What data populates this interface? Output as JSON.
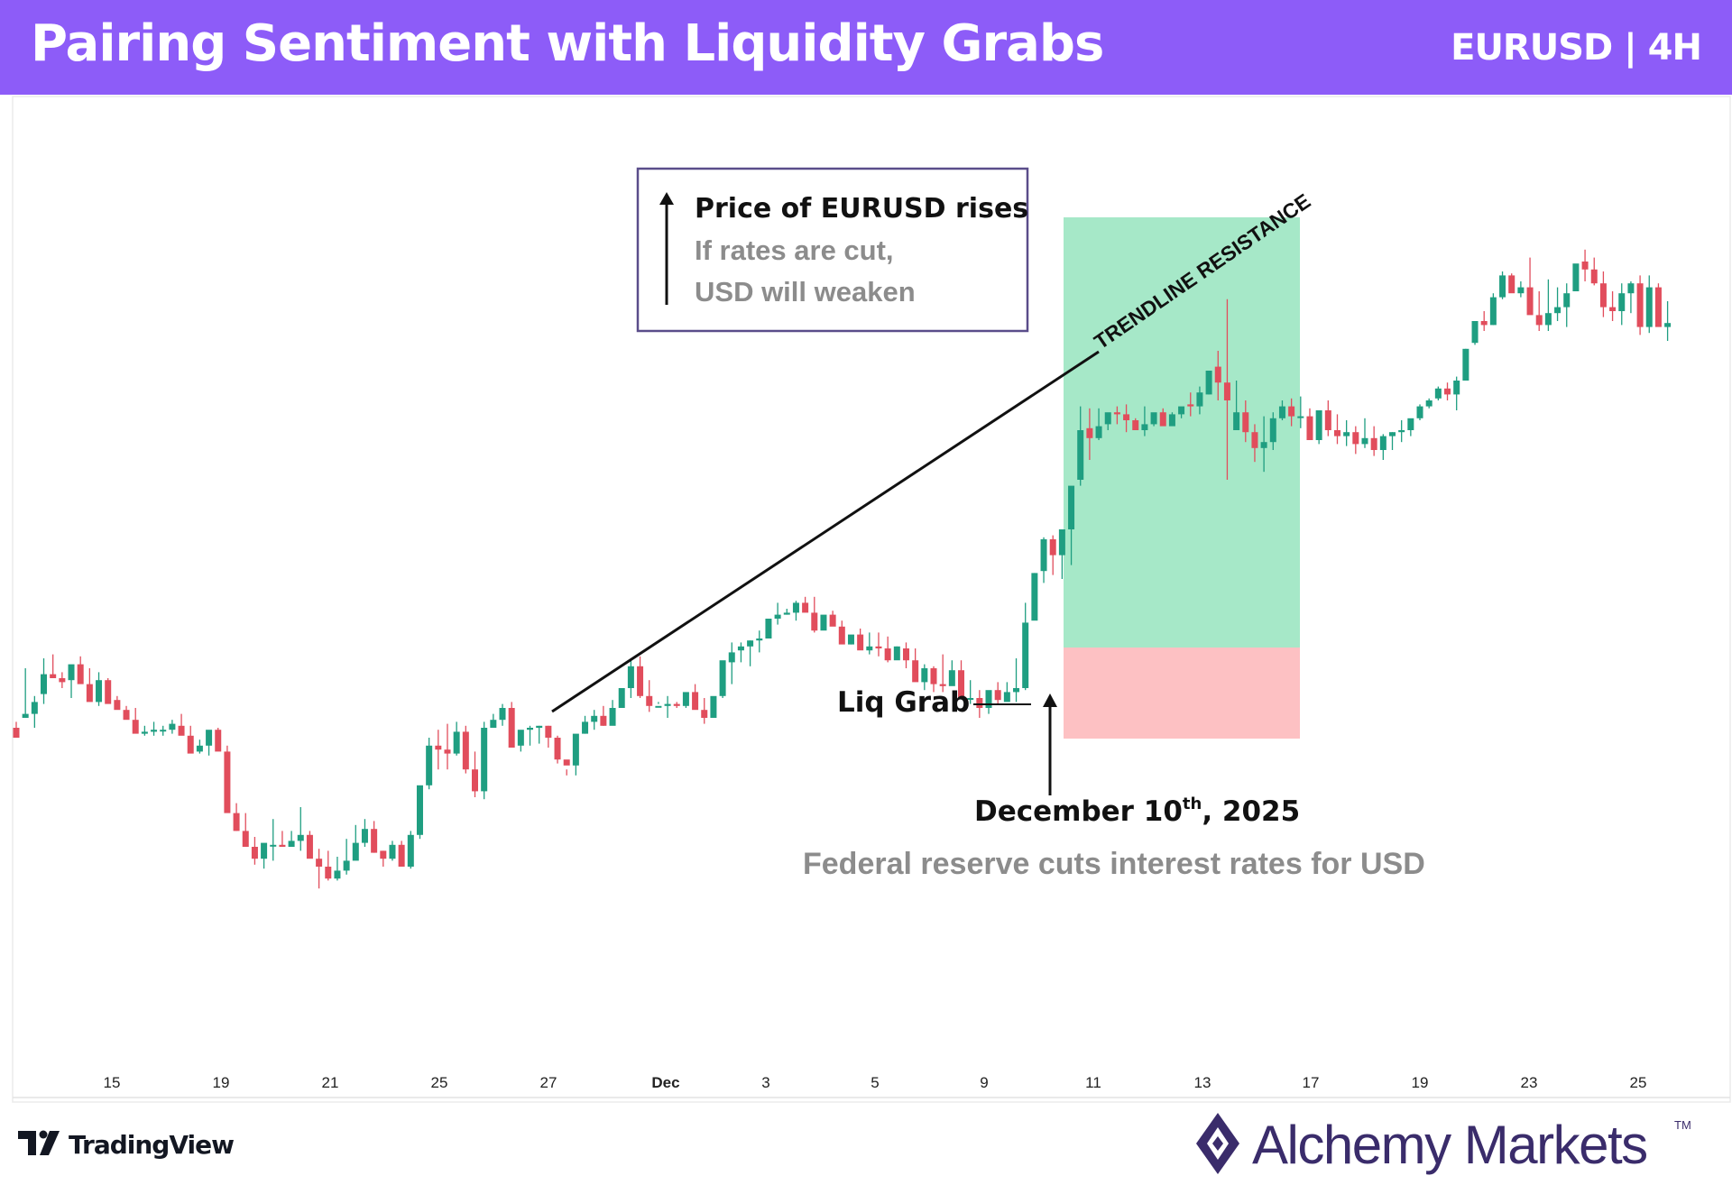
{
  "header": {
    "title": "Pairing Sentiment with Liquidity Grabs",
    "ticker": "EURUSD | 4H"
  },
  "colors": {
    "header_bg": "#8d5cf8",
    "up_candle": "#1f9e81",
    "down_candle": "#e14d5c",
    "profit_zone": "#a6e8c8",
    "loss_zone": "#fdc1c3",
    "annotation_box_border": "#5a4d8a",
    "annotation_gray": "#8c8c8c",
    "brand_mark": "#3a2c6b"
  },
  "icons": {
    "tradingview": "tradingview-logo-icon",
    "brand": "alchemy-markets-logo-icon",
    "arrows": "arrow-up-icon"
  },
  "chart_data": {
    "type": "candlestick",
    "symbol": "EURUSD",
    "timeframe": "4H",
    "x_tick_labels": [
      "15",
      "19",
      "21",
      "25",
      "27",
      "Dec",
      "3",
      "5",
      "9",
      "11",
      "13",
      "17",
      "19",
      "23",
      "25"
    ],
    "y_axis_labels_shown": false,
    "grid": false,
    "relative_price_scale": [
      0,
      100
    ],
    "candles_relative": [
      [
        28,
        25,
        23,
        20
      ],
      [
        30,
        30,
        55,
        32
      ],
      [
        25,
        32,
        41,
        38
      ],
      [
        37,
        42,
        60,
        52
      ],
      [
        50,
        52,
        62,
        50
      ],
      [
        45,
        50,
        53,
        48
      ],
      [
        40,
        49,
        52,
        57
      ],
      [
        52,
        57,
        61,
        47
      ],
      [
        45,
        47,
        55,
        38
      ],
      [
        36,
        38,
        53,
        49
      ],
      [
        48,
        49,
        50,
        37
      ],
      [
        35,
        39,
        41,
        34
      ],
      [
        30,
        34,
        36,
        29
      ],
      [
        27,
        29,
        35,
        22
      ],
      [
        21,
        22,
        26,
        23
      ],
      [
        21,
        23,
        28,
        24
      ],
      [
        21,
        24,
        26,
        24
      ],
      [
        22,
        24,
        29,
        27
      ],
      [
        22,
        26,
        32,
        21
      ],
      [
        15,
        21,
        26,
        12
      ],
      [
        12,
        13,
        19,
        16
      ],
      [
        11,
        16,
        18,
        24
      ],
      [
        19,
        24,
        25,
        13
      ],
      [
        -17,
        13,
        16,
        -18
      ],
      [
        -27,
        -18,
        -13,
        -27
      ],
      [
        -30,
        -27,
        -18,
        -35
      ],
      [
        -44,
        -35,
        -30,
        -41
      ],
      [
        -46,
        -41,
        -38,
        -33
      ],
      [
        -42,
        -34,
        -21,
        -34
      ],
      [
        -35,
        -34,
        -27,
        -35
      ],
      [
        -35,
        -35,
        -27,
        -32
      ],
      [
        -37,
        -32,
        -15,
        -29
      ],
      [
        -39,
        -29,
        -27,
        -41
      ],
      [
        -56,
        -41,
        -36,
        -45
      ],
      [
        -52,
        -45,
        -37,
        -51
      ],
      [
        -52,
        -51,
        -40,
        -47
      ],
      [
        -49,
        -47,
        -31,
        -42
      ],
      [
        -38,
        -42,
        -24,
        -33
      ],
      [
        -35,
        -33,
        -21,
        -26
      ],
      [
        -38,
        -26,
        -22,
        -38
      ],
      [
        -45,
        -37,
        -37,
        -41
      ],
      [
        -42,
        -41,
        -32,
        -34
      ],
      [
        -44,
        -34,
        -32,
        -45
      ],
      [
        -46,
        -45,
        -27,
        -29
      ],
      [
        -31,
        -29,
        -8,
        -4
      ],
      [
        -6,
        -4,
        20,
        16
      ],
      [
        4,
        16,
        24,
        14
      ],
      [
        4,
        14,
        27,
        12
      ],
      [
        11,
        12,
        28,
        23
      ],
      [
        2,
        23,
        26,
        4
      ],
      [
        -10,
        4,
        13,
        -7
      ],
      [
        -11,
        -7,
        28,
        25
      ],
      [
        25,
        25,
        32,
        29
      ],
      [
        26,
        29,
        37,
        35
      ],
      [
        21,
        35,
        38,
        15
      ],
      [
        13,
        16,
        23,
        24
      ],
      [
        16,
        24,
        26,
        25
      ],
      [
        17,
        25,
        26,
        26
      ],
      [
        15,
        26,
        26,
        20
      ],
      [
        7,
        20,
        21,
        9
      ],
      [
        1,
        9,
        4,
        6
      ],
      [
        1,
        6,
        18,
        22
      ],
      [
        22,
        22,
        31,
        28
      ],
      [
        24,
        28,
        34,
        31
      ],
      [
        26,
        31,
        36,
        26
      ],
      [
        35,
        26,
        39,
        35
      ],
      [
        40,
        35,
        45,
        45
      ],
      [
        40,
        45,
        59,
        56
      ],
      [
        40,
        56,
        61,
        41
      ],
      [
        33,
        41,
        49,
        36
      ],
      [
        37,
        36,
        38,
        36
      ],
      [
        30,
        36,
        41,
        37
      ],
      [
        35,
        37,
        38,
        36
      ],
      [
        35,
        36,
        41,
        43
      ],
      [
        36,
        43,
        47,
        34
      ],
      [
        27,
        34,
        40,
        30
      ],
      [
        30,
        30,
        38,
        41
      ],
      [
        40,
        41,
        51,
        59
      ],
      [
        47,
        58,
        68,
        63
      ],
      [
        58,
        64,
        68,
        66
      ],
      [
        56,
        66,
        69,
        69
      ],
      [
        63,
        69,
        74,
        70
      ],
      [
        70,
        70,
        76,
        80
      ],
      [
        77,
        80,
        88,
        82
      ],
      [
        82,
        82,
        85,
        83
      ],
      [
        79,
        83,
        89,
        88
      ],
      [
        85,
        88,
        91,
        83
      ],
      [
        73,
        83,
        91,
        74
      ],
      [
        78,
        74,
        78,
        82
      ],
      [
        80,
        82,
        84,
        76
      ],
      [
        70,
        76,
        79,
        67
      ],
      [
        67,
        67,
        68,
        72
      ],
      [
        69,
        72,
        75,
        64
      ],
      [
        62,
        64,
        73,
        66
      ],
      [
        61,
        66,
        73,
        65
      ],
      [
        58,
        65,
        71,
        59
      ],
      [
        60,
        59,
        66,
        66
      ],
      [
        55,
        65,
        68,
        59
      ],
      [
        53,
        59,
        65,
        48
      ],
      [
        44,
        48,
        57,
        55
      ],
      [
        43,
        55,
        56,
        47
      ],
      [
        43,
        47,
        62,
        46
      ],
      [
        47,
        46,
        59,
        54
      ],
      [
        40,
        54,
        59,
        40
      ],
      [
        37,
        40,
        49,
        40
      ],
      [
        30,
        40,
        44,
        35
      ],
      [
        32,
        35,
        42,
        44
      ],
      [
        37,
        44,
        48,
        39
      ],
      [
        39,
        38,
        48,
        43
      ],
      [
        38,
        43,
        60,
        45
      ],
      [
        44,
        45,
        88,
        78
      ],
      [
        81,
        79,
        103,
        103
      ],
      [
        98,
        104,
        121,
        120
      ],
      [
        102,
        120,
        122,
        112
      ],
      [
        100,
        112,
        124,
        125
      ],
      [
        107,
        125,
        145,
        147
      ],
      [
        147,
        150,
        187,
        175
      ],
      [
        160,
        176,
        186,
        171
      ],
      [
        170,
        171,
        186,
        177
      ],
      [
        175,
        178,
        181,
        184
      ],
      [
        178,
        184,
        187,
        183
      ],
      [
        174,
        183,
        188,
        180
      ],
      [
        175,
        180,
        181,
        175
      ],
      [
        172,
        175,
        187,
        178
      ],
      [
        177,
        178,
        182,
        184
      ],
      [
        179,
        184,
        186,
        177
      ],
      [
        178,
        177,
        184,
        183
      ],
      [
        181,
        183,
        186,
        187
      ],
      [
        182,
        188,
        194,
        187
      ],
      [
        183,
        187,
        197,
        194
      ],
      [
        193,
        193,
        200,
        205
      ],
      [
        190,
        207,
        215,
        199
      ],
      [
        150,
        199,
        241,
        190
      ],
      [
        175,
        175,
        200,
        184
      ],
      [
        169,
        184,
        190,
        174
      ],
      [
        159,
        174,
        178,
        166
      ],
      [
        154,
        166,
        182,
        169
      ],
      [
        165,
        169,
        184,
        181
      ],
      [
        180,
        181,
        190,
        187
      ],
      [
        177,
        187,
        191,
        182
      ],
      [
        176,
        182,
        192,
        182
      ],
      [
        175,
        182,
        186,
        170
      ],
      [
        168,
        170,
        181,
        185
      ],
      [
        172,
        185,
        190,
        175
      ],
      [
        168,
        175,
        183,
        172
      ],
      [
        167,
        172,
        180,
        174
      ],
      [
        163,
        174,
        177,
        168
      ],
      [
        166,
        168,
        181,
        171
      ],
      [
        162,
        171,
        177,
        165
      ],
      [
        160,
        165,
        173,
        172
      ],
      [
        165,
        172,
        174,
        174
      ],
      [
        169,
        174,
        180,
        175
      ],
      [
        172,
        175,
        179,
        181
      ],
      [
        180,
        181,
        188,
        187
      ],
      [
        186,
        187,
        191,
        190
      ],
      [
        190,
        191,
        197,
        196
      ],
      [
        190,
        196,
        199,
        193
      ],
      [
        185,
        193,
        202,
        200
      ],
      [
        200,
        200,
        216,
        216
      ],
      [
        218,
        219,
        230,
        230
      ],
      [
        225,
        230,
        235,
        228
      ],
      [
        228,
        228,
        244,
        242
      ],
      [
        241,
        242,
        255,
        253
      ],
      [
        248,
        253,
        254,
        244
      ],
      [
        242,
        244,
        250,
        247
      ],
      [
        234,
        247,
        262,
        233
      ],
      [
        225,
        233,
        245,
        228
      ],
      [
        225,
        228,
        251,
        234
      ],
      [
        230,
        234,
        247,
        237
      ],
      [
        227,
        237,
        249,
        244
      ],
      [
        245,
        245,
        255,
        259
      ],
      [
        250,
        260,
        266,
        256
      ],
      [
        248,
        256,
        262,
        249
      ],
      [
        232,
        249,
        255,
        237
      ],
      [
        230,
        237,
        245,
        235
      ],
      [
        228,
        235,
        249,
        244
      ],
      [
        234,
        244,
        250,
        249
      ],
      [
        223,
        249,
        253,
        227
      ],
      [
        224,
        227,
        253,
        247
      ],
      [
        232,
        247,
        249,
        227
      ],
      [
        220,
        227,
        240,
        229
      ]
    ],
    "annotations": {
      "trendline_label": "TRENDLINE RESISTANCE",
      "liq_grab_label": "Liq Grab",
      "event_date_main": "December 10",
      "event_date_sup": "th",
      "event_date_year": ", 2025",
      "event_description": "Federal reserve cuts interest rates for USD",
      "box_title": "Price of EURUSD rises",
      "box_line1": "If rates are cut,",
      "box_line2": "USD will weaken",
      "profit_zone": "long position target",
      "loss_zone": "stop loss area"
    }
  },
  "footer": {
    "tradingview": "TradingView",
    "brand": "Alchemy Markets",
    "tm": "TM"
  }
}
